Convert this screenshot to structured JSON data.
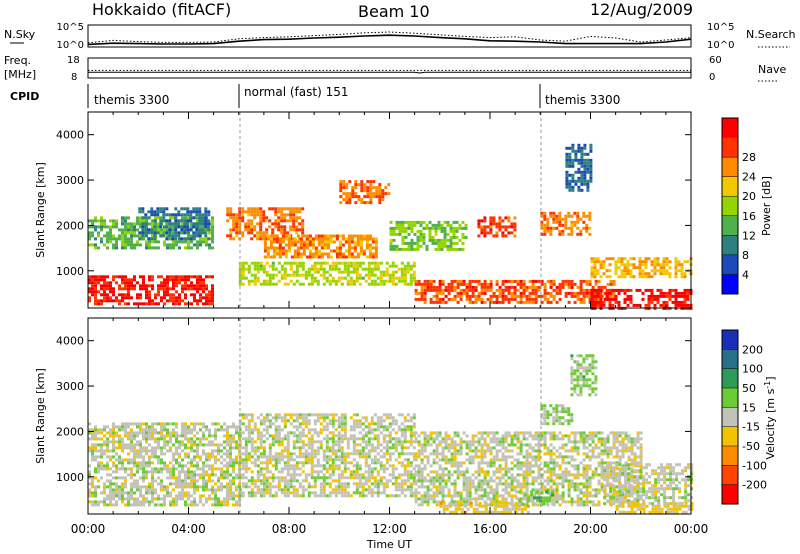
{
  "header": {
    "station": "Hokkaido (fitACF)",
    "beam": "Beam 10",
    "date": "12/Aug/2009"
  },
  "noise_panel": {
    "left_label": "N.Sky",
    "right_label": "N.Search",
    "left_ticks": [
      "10^5",
      "10^0"
    ],
    "right_ticks": [
      "10^5",
      "10^0"
    ]
  },
  "freq_panel": {
    "left_label_1": "Freq.",
    "left_label_2": "[MHz]",
    "right_label": "Nave",
    "left_ticks": [
      "18",
      "8"
    ],
    "right_ticks": [
      "60",
      "0"
    ]
  },
  "cpid": {
    "label": "CPID",
    "segments": [
      {
        "name": "themis 3300",
        "start_ut": 0.0
      },
      {
        "name": "normal (fast) 151",
        "start_ut": 6.0
      },
      {
        "name": "themis 3300",
        "start_ut": 18.0
      }
    ]
  },
  "axes": {
    "ylabel": "Slant Range [km]",
    "y_ticks": [
      "1000",
      "2000",
      "3000",
      "4000"
    ],
    "xlabel": "Time UT",
    "x_ticks": [
      "00:00",
      "04:00",
      "08:00",
      "12:00",
      "16:00",
      "20:00",
      "00:00"
    ]
  },
  "power_colorbar": {
    "label": "Power [dB]",
    "ticks": [
      "4",
      "8",
      "12",
      "16",
      "20",
      "24",
      "28"
    ],
    "colors": [
      "#0000ff",
      "#1a4ab8",
      "#2e7f7f",
      "#50b14a",
      "#94d400",
      "#f2c800",
      "#ff8c00",
      "#ff3300",
      "#ff0000"
    ]
  },
  "velocity_colorbar": {
    "label": "Velocity [m s",
    "label_sup": "-1",
    "label_end": "]",
    "ticks": [
      "200",
      "100",
      "50",
      "15",
      "-15",
      "-50",
      "-100",
      "-200"
    ],
    "colors": [
      "#1a2fb5",
      "#2a6f8a",
      "#2e9a5a",
      "#6ccc33",
      "#c2c2b8",
      "#f2c400",
      "#ff8c00",
      "#ff4400",
      "#ff0000"
    ]
  },
  "chart_data": [
    {
      "type": "line",
      "title": "Hokkaido (fitACF)",
      "xlabel": "",
      "ylabel": "N.Sky",
      "xlim": [
        0,
        24
      ],
      "ylim": [
        0,
        5
      ],
      "series": [
        {
          "x": [
            0,
            1,
            2,
            3,
            4,
            5,
            6,
            7,
            8,
            9,
            10,
            11,
            12,
            13,
            14,
            15,
            16,
            17,
            18,
            19,
            20,
            21,
            22,
            23,
            24
          ],
          "values": [
            0.4,
            0.7,
            0.6,
            0.5,
            0.5,
            0.6,
            1.2,
            1.6,
            1.7,
            2.0,
            2.2,
            2.5,
            2.7,
            2.5,
            2.1,
            1.8,
            1.3,
            1.2,
            1.0,
            0.6,
            0.6,
            0.6,
            0.6,
            1.0,
            1.7
          ]
        },
        {
          "x": [
            0,
            1,
            2,
            3,
            4,
            5,
            6,
            7,
            8,
            9,
            10,
            11,
            12,
            13,
            14,
            15,
            16,
            17,
            18,
            19,
            20,
            21,
            22,
            23,
            24
          ],
          "values": [
            0.8,
            1.4,
            1.1,
            0.9,
            0.9,
            1.0,
            1.8,
            2.1,
            2.3,
            2.6,
            2.9,
            3.3,
            3.5,
            3.2,
            2.8,
            2.4,
            2.1,
            2.3,
            1.5,
            1.2,
            2.4,
            2.0,
            1.0,
            1.5,
            2.1
          ]
        }
      ]
    },
    {
      "type": "line",
      "xlabel": "",
      "ylabel": "Freq. [MHz]",
      "xlim": [
        0,
        24
      ],
      "ylim": [
        8,
        18
      ],
      "series": [
        {
          "x": [
            0,
            13.0,
            13.2,
            13.4,
            24
          ],
          "values": [
            10.9,
            10.9,
            10.5,
            10.9,
            10.9
          ]
        },
        {
          "x": [
            0,
            24
          ],
          "values": [
            11.8,
            11.8
          ]
        }
      ]
    },
    {
      "type": "heatmap",
      "title": "Beam 10",
      "xlabel": "Time UT",
      "ylabel": "Slant Range [km]",
      "xlim": [
        0,
        24
      ],
      "ylim": [
        180,
        4500
      ],
      "colorbar": "Power [dB]",
      "colorbar_range": [
        0,
        32
      ],
      "bands": [
        {
          "t0": 0.0,
          "t1": 5.0,
          "r0": 300,
          "r1": 900,
          "value": 29
        },
        {
          "t0": 0.0,
          "t1": 5.0,
          "r0": 1500,
          "r1": 2200,
          "value": 13
        },
        {
          "t0": 2.0,
          "t1": 4.8,
          "r0": 1700,
          "r1": 2400,
          "value": 8
        },
        {
          "t0": 5.5,
          "t1": 8.5,
          "r0": 1700,
          "r1": 2400,
          "value": 24
        },
        {
          "t0": 7.0,
          "t1": 11.5,
          "r0": 1300,
          "r1": 1800,
          "value": 23
        },
        {
          "t0": 6.0,
          "t1": 13.0,
          "r0": 700,
          "r1": 1200,
          "value": 17
        },
        {
          "t0": 10.0,
          "t1": 12.0,
          "r0": 2500,
          "r1": 3000,
          "value": 25
        },
        {
          "t0": 12.0,
          "t1": 15.0,
          "r0": 1500,
          "r1": 2100,
          "value": 15
        },
        {
          "t0": 15.5,
          "t1": 17.0,
          "r0": 1800,
          "r1": 2200,
          "value": 27
        },
        {
          "t0": 13.0,
          "t1": 21.0,
          "r0": 300,
          "r1": 800,
          "value": 26
        },
        {
          "t0": 18.0,
          "t1": 20.0,
          "r0": 1800,
          "r1": 2300,
          "value": 24
        },
        {
          "t0": 19.0,
          "t1": 20.0,
          "r0": 2800,
          "r1": 3800,
          "value": 7
        },
        {
          "t0": 20.0,
          "t1": 24.0,
          "r0": 200,
          "r1": 600,
          "value": 30
        },
        {
          "t0": 20.0,
          "t1": 24.0,
          "r0": 900,
          "r1": 1300,
          "value": 21
        }
      ]
    },
    {
      "type": "heatmap",
      "xlabel": "Time UT",
      "ylabel": "Slant Range [km]",
      "xlim": [
        0,
        24
      ],
      "ylim": [
        180,
        4500
      ],
      "colorbar": "Velocity [m s-1]",
      "colorbar_range": [
        -250,
        250
      ],
      "bands": [
        {
          "t0": 0.0,
          "t1": 6.0,
          "r0": 400,
          "r1": 2200,
          "value": 0
        },
        {
          "t0": 6.0,
          "t1": 13.0,
          "r0": 600,
          "r1": 2400,
          "value": 0
        },
        {
          "t0": 13.0,
          "t1": 22.0,
          "r0": 400,
          "r1": 2000,
          "value": 0
        },
        {
          "t0": 20.5,
          "t1": 24.0,
          "r0": 400,
          "r1": 1300,
          "value": 0
        },
        {
          "t0": 14.0,
          "t1": 17.5,
          "r0": 250,
          "r1": 450,
          "value": -45
        },
        {
          "t0": 17.0,
          "t1": 18.5,
          "r0": 400,
          "r1": 700,
          "value": 45
        },
        {
          "t0": 18.0,
          "t1": 19.2,
          "r0": 2200,
          "r1": 2600,
          "value": 40
        },
        {
          "t0": 19.2,
          "t1": 20.2,
          "r0": 2800,
          "r1": 3700,
          "value": 40
        },
        {
          "t0": 21.0,
          "t1": 24.0,
          "r0": 200,
          "r1": 450,
          "value": -40
        }
      ]
    }
  ]
}
